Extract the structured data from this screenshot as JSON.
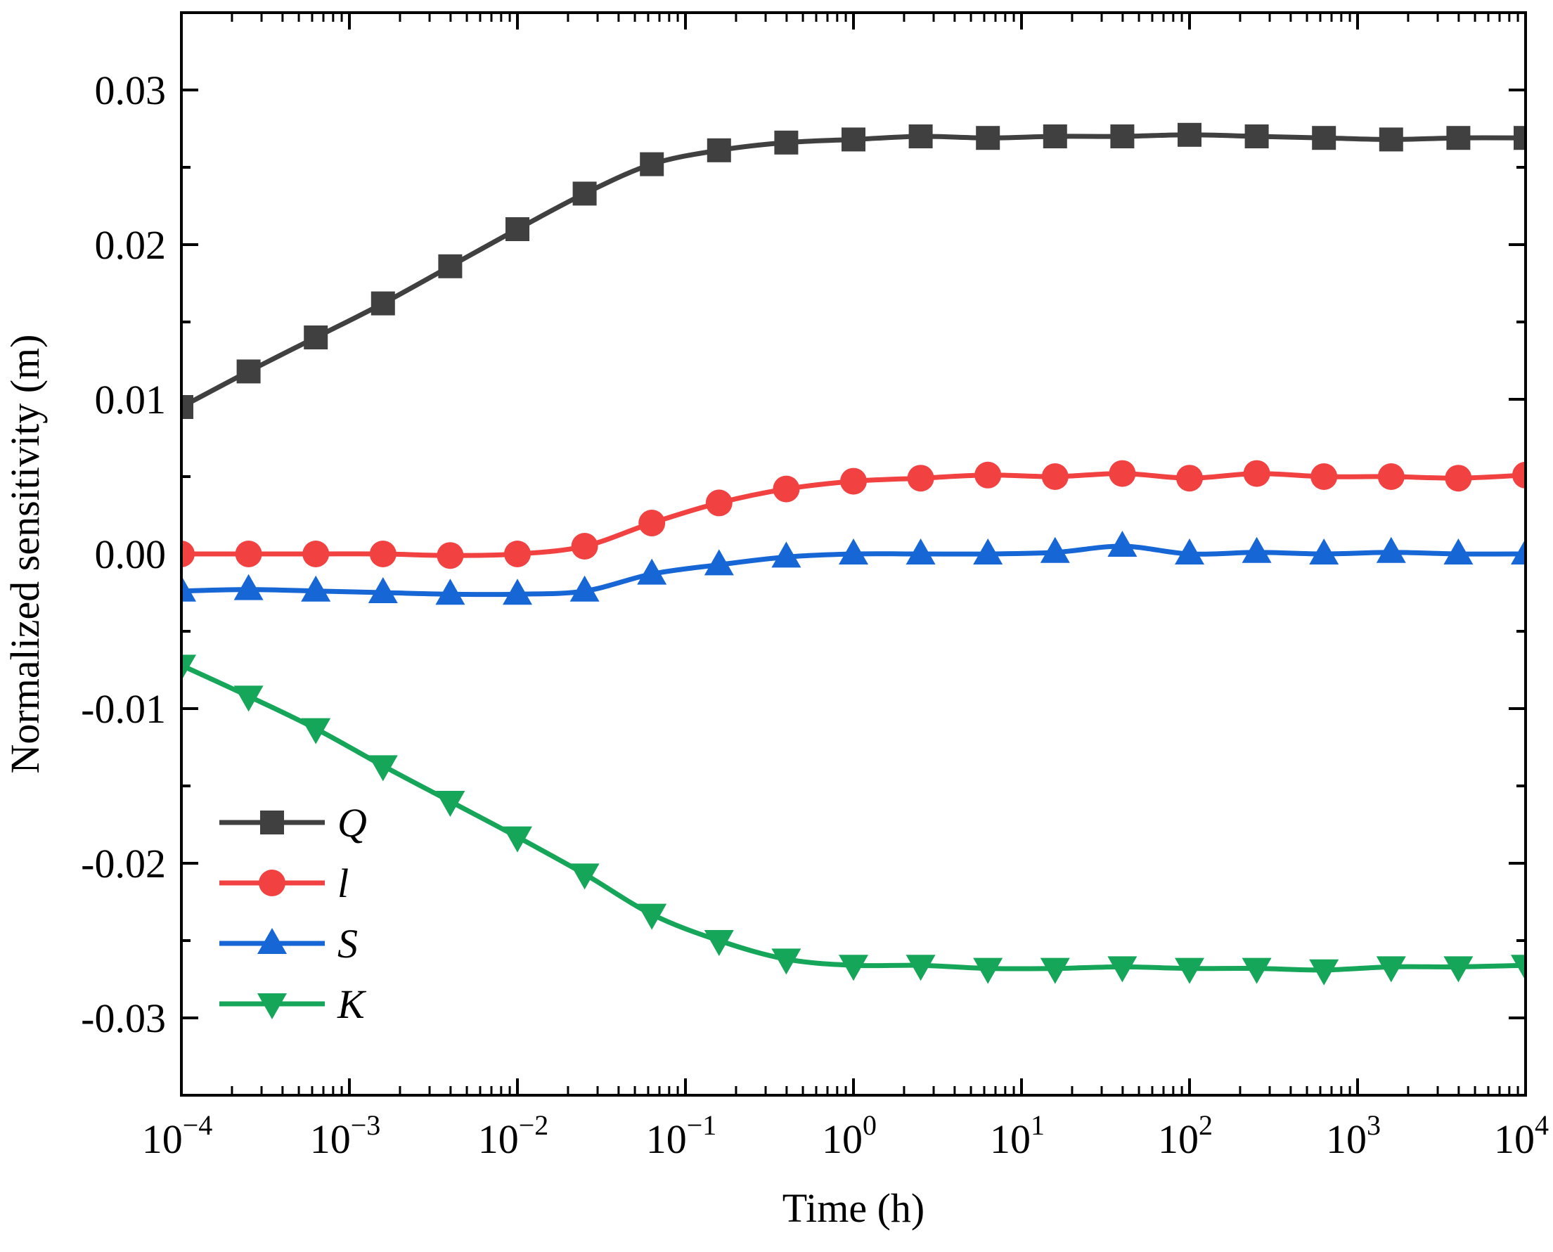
{
  "chart_data": {
    "type": "line",
    "xscale": "log",
    "xlabel": "Time (h)",
    "ylabel": "Normalized sensitivity (m)",
    "xlim": [
      0.0001,
      10000
    ],
    "ylim": [
      -0.035,
      0.035
    ],
    "x_tick_exponents": [
      "-4",
      "-3",
      "-2",
      "-1",
      "0",
      "1",
      "2",
      "3",
      "4"
    ],
    "x_tick_base": "10",
    "y_ticks": [
      -0.03,
      -0.02,
      -0.01,
      0.0,
      0.01,
      0.02,
      0.03
    ],
    "y_tick_labels": [
      "-0.03",
      "-0.02",
      "-0.01",
      "0.00",
      "0.01",
      "0.02",
      "0.03"
    ],
    "legend_position": "lower-left",
    "marker_log_x": [
      -4.0,
      -3.6,
      -3.2,
      -2.8,
      -2.4,
      -2.0,
      -1.6,
      -1.2,
      -0.8,
      -0.4,
      0.0,
      0.4,
      0.8,
      1.2,
      1.6,
      2.0,
      2.4,
      2.8,
      3.2,
      3.6,
      4.0
    ],
    "series": [
      {
        "name": "Q",
        "color": "#404040",
        "marker": "square",
        "values": [
          0.0095,
          0.0118,
          0.014,
          0.0162,
          0.0186,
          0.021,
          0.0233,
          0.0252,
          0.0261,
          0.0266,
          0.0268,
          0.027,
          0.0269,
          0.027,
          0.027,
          0.0271,
          0.027,
          0.0269,
          0.0268,
          0.0269,
          0.0269
        ]
      },
      {
        "name": "l",
        "color": "#f24141",
        "marker": "circle",
        "values": [
          0.0,
          0.0,
          0.0,
          0.0,
          -0.0001,
          0.0,
          0.0005,
          0.002,
          0.0033,
          0.0042,
          0.0047,
          0.0049,
          0.0051,
          0.005,
          0.0052,
          0.0049,
          0.0052,
          0.005,
          0.005,
          0.0049,
          0.0051
        ]
      },
      {
        "name": "S",
        "color": "#1766d6",
        "marker": "triangle-up",
        "values": [
          -0.0024,
          -0.0023,
          -0.0024,
          -0.0025,
          -0.0026,
          -0.0026,
          -0.0024,
          -0.0013,
          -0.0007,
          -0.0002,
          0.0,
          0.0,
          0.0,
          0.0001,
          0.0005,
          0.0,
          0.0001,
          0.0,
          0.0001,
          0.0,
          0.0
        ]
      },
      {
        "name": "K",
        "color": "#16a65a",
        "marker": "triangle-down",
        "values": [
          -0.0072,
          -0.0092,
          -0.0113,
          -0.0137,
          -0.016,
          -0.0183,
          -0.0207,
          -0.0233,
          -0.025,
          -0.0262,
          -0.0266,
          -0.0266,
          -0.0268,
          -0.0268,
          -0.0267,
          -0.0268,
          -0.0268,
          -0.0269,
          -0.0267,
          -0.0267,
          -0.0266
        ]
      }
    ]
  }
}
